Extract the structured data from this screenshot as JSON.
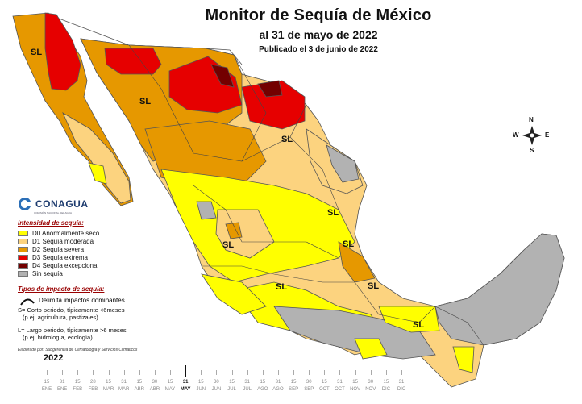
{
  "header": {
    "title": "Monitor de Sequía de México",
    "subtitle": "al 31 de mayo de 2022",
    "published": "Publicado el 3 de junio de 2022"
  },
  "logo": {
    "name": "CONAGUA",
    "tagline": "COMISIÓN NACIONAL DEL AGUA"
  },
  "legend": {
    "intensity_title": "Intensidad de sequía:",
    "items": [
      {
        "code": "D0",
        "label": "D0 Anormalmente seco",
        "color": "#ffff00"
      },
      {
        "code": "D1",
        "label": "D1 Sequía moderada",
        "color": "#fcd37f"
      },
      {
        "code": "D2",
        "label": "D2 Sequía severa",
        "color": "#e69800"
      },
      {
        "code": "D3",
        "label": "D3 Sequía extrema",
        "color": "#e60000"
      },
      {
        "code": "D4",
        "label": "D4 Sequía excepcional",
        "color": "#730000"
      },
      {
        "code": "none",
        "label": "Sin sequía",
        "color": "#b2b2b2"
      }
    ],
    "impact_title": "Tipos de impacto de sequía:",
    "impact_line": "Delimita impactos dominantes",
    "short_term": [
      "S= Corto periodo, típicamente <6meses",
      "(p.ej. agricultura, pastizales)"
    ],
    "long_term": [
      "L= Largo periodo, típicamente >6 meses",
      "(p.ej. hidrología, ecología)"
    ]
  },
  "credit": "Elaborado por: Subgerencia de Climatología y Servicios Climáticos",
  "compass": {
    "n": "N",
    "s": "S",
    "e": "E",
    "w": "W"
  },
  "region_labels": [
    "SL",
    "SL",
    "SL",
    "SL",
    "SL",
    "SL",
    "SL",
    "SL",
    "SL"
  ],
  "timeline": {
    "year": "2022",
    "days": [
      "15",
      "31",
      "15",
      "28",
      "15",
      "31",
      "15",
      "30",
      "15",
      "31",
      "15",
      "30",
      "15",
      "31",
      "15",
      "31",
      "15",
      "30",
      "15",
      "31",
      "15",
      "30",
      "15",
      "31"
    ],
    "months": [
      "ENE",
      "ENE",
      "FEB",
      "FEB",
      "MAR",
      "MAR",
      "ABR",
      "ABR",
      "MAY",
      "MAY",
      "JUN",
      "JUN",
      "JUL",
      "JUL",
      "AGO",
      "AGO",
      "SEP",
      "SEP",
      "OCT",
      "OCT",
      "NOV",
      "NOV",
      "DIC",
      "DIC"
    ],
    "active_index": 9
  }
}
